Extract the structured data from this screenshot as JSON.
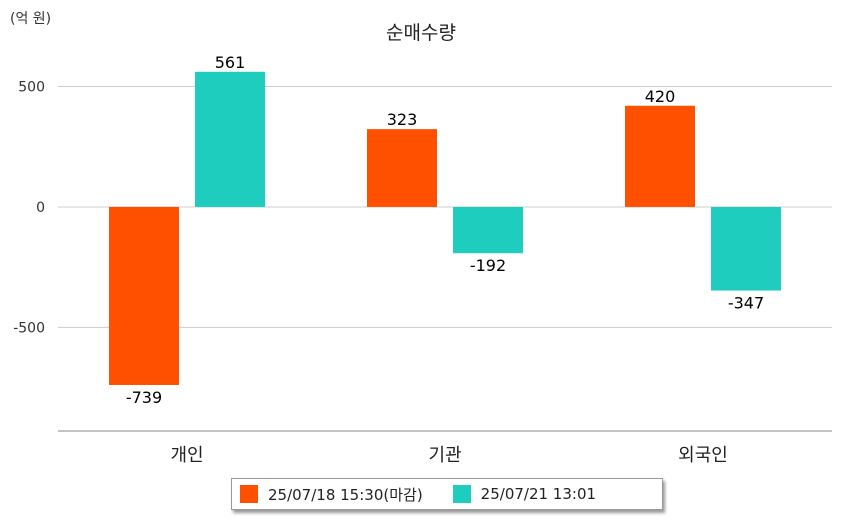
{
  "chart_data": {
    "type": "bar",
    "title": "순매수량",
    "unit_label": "(억 원)",
    "categories": [
      "개인",
      "기관",
      "외국인"
    ],
    "series": [
      {
        "name": "25/07/18 15:30(마감)",
        "color": "#FF5000",
        "values": [
          -739,
          323,
          420
        ]
      },
      {
        "name": "25/07/21 13:01",
        "color": "#1ECDBD",
        "values": [
          561,
          -192,
          -347
        ]
      }
    ],
    "y_ticks": [
      500,
      0,
      -500
    ],
    "ylim": [
      -930,
      610
    ],
    "grid": true,
    "legend_position": "bottom"
  }
}
